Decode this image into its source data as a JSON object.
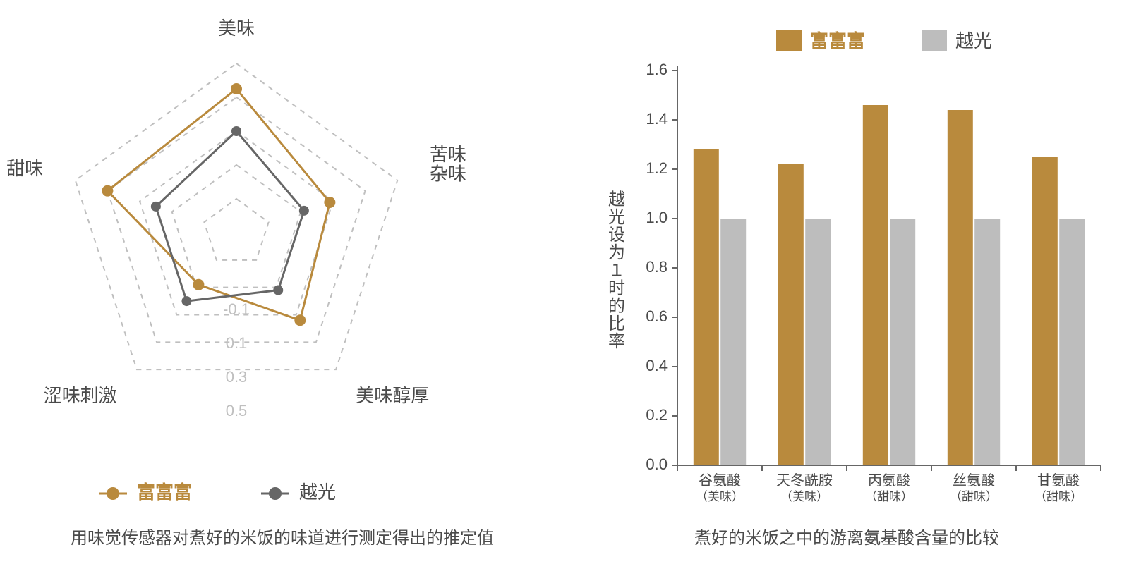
{
  "colors": {
    "background": "#ffffff",
    "series_a": "#b98a3d",
    "series_a_fill": "#b98a3d",
    "series_b": "#666666",
    "series_b_bar": "#bdbdbd",
    "grid": "#bfbfbf",
    "ring_label": "#bfbfbf",
    "text": "#4a4a4a",
    "axis_line": "#666666"
  },
  "radar": {
    "type": "radar",
    "axes": [
      "美味",
      "苦味\n杂味",
      "美味醇厚",
      "涩味刺激",
      "甜味"
    ],
    "axis_fontsize": 26,
    "min": -0.5,
    "max": 0.5,
    "rings": [
      0.5,
      0.3,
      0.1,
      -0.1,
      -0.3,
      -0.5
    ],
    "ring_labels": [
      {
        "v": -0.1,
        "text": "-0.1"
      },
      {
        "v": 0.1,
        "text": "0.1"
      },
      {
        "v": 0.3,
        "text": "0.3"
      },
      {
        "v": 0.5,
        "text": "0.5"
      }
    ],
    "ring_label_fontsize": 22,
    "series": [
      {
        "name": "富富富",
        "color_key": "series_a",
        "values": [
          0.35,
          0.08,
          0.14,
          -0.12,
          0.3
        ],
        "marker_r": 8,
        "line_w": 3
      },
      {
        "name": "越光",
        "color_key": "series_b",
        "values": [
          0.1,
          -0.08,
          -0.08,
          0.0,
          0.0
        ],
        "marker_r": 7,
        "line_w": 3
      }
    ],
    "legend": {
      "fontsize": 26,
      "marker_r": 9,
      "line_len": 40
    },
    "caption": "用味觉传感器对煮好的米饭的味道进行测定得出的推定值",
    "caption_fontsize": 24
  },
  "bar": {
    "type": "bar",
    "ylabel": "越光设为１时的比率",
    "ylabel_fontsize": 24,
    "categories": [
      {
        "name": "谷氨酸",
        "sub": "（美味）"
      },
      {
        "name": "天冬酰胺",
        "sub": "（美味）"
      },
      {
        "name": "丙氨酸",
        "sub": "（甜味）"
      },
      {
        "name": "丝氨酸",
        "sub": "（甜味）"
      },
      {
        "name": "甘氨酸",
        "sub": "（甜味）"
      }
    ],
    "cat_fontsize": 20,
    "cat_sub_fontsize": 17,
    "legend": [
      {
        "label": "富富富",
        "color_key": "series_a_fill"
      },
      {
        "label": "越光",
        "color_key": "series_b_bar"
      }
    ],
    "legend_fontsize": 26,
    "ylim": [
      0.0,
      1.6
    ],
    "ytick_step": 0.2,
    "tick_fontsize": 22,
    "series": [
      {
        "name": "富富富",
        "color_key": "series_a_fill",
        "values": [
          1.28,
          1.22,
          1.46,
          1.44,
          1.25
        ]
      },
      {
        "name": "越光",
        "color_key": "series_b_bar",
        "values": [
          1.0,
          1.0,
          1.0,
          1.0,
          1.0
        ]
      }
    ],
    "bar_group_width": 0.62,
    "bar_gap_in_group": 0.02,
    "axis_line_w": 2,
    "caption": "煮好的米饭之中的游离氨基酸含量的比较",
    "caption_fontsize": 24
  }
}
